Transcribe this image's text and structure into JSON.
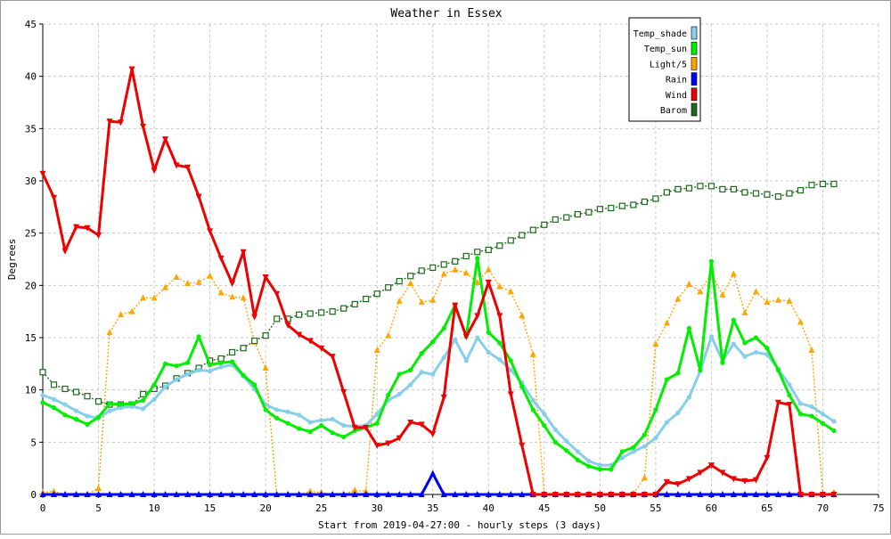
{
  "chart_data": {
    "type": "line",
    "title": "Weather in Essex",
    "xlabel": "Start from 2019-04-27:00 - hourly steps (3 days)",
    "ylabel": "Degrees",
    "xlim": [
      0,
      75
    ],
    "ylim": [
      0,
      45
    ],
    "x_ticks": [
      0,
      5,
      10,
      15,
      20,
      25,
      30,
      35,
      40,
      45,
      50,
      55,
      60,
      65,
      70,
      75
    ],
    "y_ticks": [
      0,
      5,
      10,
      15,
      20,
      25,
      30,
      35,
      40,
      45
    ],
    "grid": true,
    "legend_position": "top-right",
    "x": [
      0,
      1,
      2,
      3,
      4,
      5,
      6,
      7,
      8,
      9,
      10,
      11,
      12,
      13,
      14,
      15,
      16,
      17,
      18,
      19,
      20,
      21,
      22,
      23,
      24,
      25,
      26,
      27,
      28,
      29,
      30,
      31,
      32,
      33,
      34,
      35,
      36,
      37,
      38,
      39,
      40,
      41,
      42,
      43,
      44,
      45,
      46,
      47,
      48,
      49,
      50,
      51,
      52,
      53,
      54,
      55,
      56,
      57,
      58,
      59,
      60,
      61,
      62,
      63,
      64,
      65,
      66,
      67,
      68,
      69,
      70,
      71
    ],
    "series": [
      {
        "name": "Light/5",
        "color": "#ffa500",
        "marker": "triangle-up",
        "style": "dotted",
        "values": [
          0.2,
          0.3,
          0,
          0,
          0,
          0.6,
          15.5,
          17.2,
          17.5,
          18.8,
          18.8,
          19.8,
          20.8,
          20.2,
          20.3,
          20.9,
          19.3,
          18.9,
          18.8,
          14.6,
          12.1,
          0,
          0,
          0,
          0.3,
          0.2,
          0,
          0,
          0.4,
          0.3,
          13.8,
          15.2,
          18.5,
          20.2,
          18.4,
          18.6,
          21.1,
          21.5,
          21.2,
          20.3,
          21.5,
          19.9,
          19.4,
          17.1,
          13.4,
          0,
          0,
          0,
          0,
          0,
          0,
          0,
          0,
          0.1,
          1.6,
          14.4,
          16.4,
          18.7,
          20.1,
          19.4,
          21.1,
          19.1,
          21.1,
          17.4,
          19.4,
          18.4,
          18.6,
          18.5,
          16.5,
          13.8,
          0,
          0.2
        ]
      },
      {
        "name": "Barom",
        "color": "#1a6b1a",
        "marker": "square-open",
        "style": "dotted",
        "values": [
          11.7,
          10.5,
          10.1,
          9.8,
          9.4,
          8.9,
          8.6,
          8.6,
          8.6,
          9.6,
          10.1,
          10.4,
          11.1,
          11.6,
          12.1,
          12.8,
          13.0,
          13.6,
          14.0,
          14.7,
          15.2,
          16.8,
          16.8,
          17.2,
          17.3,
          17.4,
          17.5,
          17.8,
          18.2,
          18.7,
          19.2,
          19.8,
          20.4,
          20.9,
          21.4,
          21.7,
          22.0,
          22.3,
          22.8,
          23.2,
          23.4,
          23.8,
          24.3,
          24.8,
          25.3,
          25.8,
          26.3,
          26.5,
          26.8,
          27.0,
          27.3,
          27.4,
          27.6,
          27.7,
          28.0,
          28.3,
          28.9,
          29.2,
          29.3,
          29.5,
          29.5,
          29.2,
          29.2,
          28.9,
          28.8,
          28.7,
          28.5,
          28.8,
          29.1,
          29.6,
          29.7,
          29.7
        ]
      },
      {
        "name": "Temp_shade",
        "color": "#87ceeb",
        "marker": "dot",
        "style": "solid",
        "values": [
          9.5,
          9.1,
          8.6,
          8.0,
          7.5,
          7.3,
          8.0,
          8.3,
          8.4,
          8.2,
          9.1,
          10.3,
          11.0,
          11.5,
          11.9,
          11.8,
          12.2,
          12.4,
          11.3,
          10.1,
          8.6,
          8.1,
          7.9,
          7.6,
          6.9,
          7.1,
          7.2,
          6.6,
          6.5,
          6.6,
          7.7,
          9.0,
          9.6,
          10.5,
          11.7,
          11.5,
          13.1,
          14.8,
          12.8,
          15.0,
          13.6,
          12.9,
          11.9,
          10.7,
          9.0,
          7.7,
          6.2,
          5.1,
          4.1,
          3.2,
          2.8,
          2.8,
          3.5,
          4.1,
          4.6,
          5.4,
          6.9,
          7.8,
          9.3,
          11.8,
          15.1,
          12.8,
          14.4,
          13.2,
          13.6,
          13.4,
          12.0,
          10.5,
          8.7,
          8.4,
          7.7,
          7.0
        ]
      },
      {
        "name": "Temp_sun",
        "color": "#00ee00",
        "marker": "dot",
        "style": "solid",
        "values": [
          8.8,
          8.3,
          7.6,
          7.2,
          6.7,
          7.4,
          8.7,
          8.6,
          8.7,
          9.0,
          10.5,
          12.5,
          12.3,
          12.6,
          15.1,
          12.4,
          12.6,
          12.7,
          11.4,
          10.5,
          8.1,
          7.3,
          6.8,
          6.3,
          6.0,
          6.6,
          5.9,
          5.5,
          6.1,
          6.4,
          6.8,
          9.5,
          11.5,
          11.9,
          13.5,
          14.6,
          15.9,
          18.1,
          15.1,
          22.6,
          15.5,
          14.5,
          12.8,
          10.3,
          8.1,
          6.6,
          5.0,
          4.2,
          3.3,
          2.7,
          2.4,
          2.4,
          4.1,
          4.5,
          5.7,
          8.1,
          11.0,
          11.6,
          15.9,
          11.9,
          22.3,
          12.6,
          16.7,
          14.5,
          15.0,
          14.0,
          11.9,
          9.5,
          7.7,
          7.5,
          6.8,
          6.1
        ]
      },
      {
        "name": "Rain",
        "color": "#0000ff",
        "marker": "triangle-up",
        "style": "solid",
        "values": [
          0,
          0,
          0,
          0,
          0,
          0,
          0,
          0,
          0,
          0,
          0,
          0,
          0,
          0,
          0,
          0,
          0,
          0,
          0,
          0,
          0,
          0,
          0,
          0,
          0,
          0,
          0,
          0,
          0,
          0,
          0,
          0,
          0,
          0,
          0,
          2.0,
          0,
          0,
          0,
          0,
          0,
          0,
          0,
          0,
          0,
          0,
          0,
          0,
          0,
          0,
          0,
          0,
          0,
          0,
          0,
          0,
          0,
          0,
          0,
          0,
          0,
          0,
          0,
          0,
          0,
          0,
          0,
          0,
          0,
          0,
          0,
          0
        ]
      },
      {
        "name": "Wind",
        "color": "#ee0000",
        "marker": "triangle-down",
        "style": "solid",
        "values": [
          30.7,
          28.4,
          23.3,
          25.6,
          25.5,
          24.8,
          35.7,
          35.6,
          40.7,
          35.2,
          31.0,
          34.0,
          31.5,
          31.3,
          28.5,
          25.2,
          22.6,
          20.2,
          23.2,
          17.0,
          20.8,
          19.2,
          16.2,
          15.3,
          14.7,
          14.0,
          13.2,
          9.8,
          6.4,
          6.4,
          4.7,
          4.9,
          5.4,
          6.9,
          6.7,
          5.8,
          9.3,
          18.1,
          15.1,
          17.1,
          20.3,
          17.1,
          9.6,
          4.7,
          0,
          0,
          0,
          0,
          0,
          0,
          0,
          0,
          0,
          0,
          0,
          0,
          1.2,
          1.0,
          1.5,
          2.1,
          2.8,
          2.1,
          1.5,
          1.3,
          1.4,
          3.5,
          8.8,
          8.6,
          0,
          0,
          0,
          0
        ]
      }
    ],
    "legend_order": [
      "Temp_shade",
      "Temp_sun",
      "Light/5",
      "Rain",
      "Wind",
      "Barom"
    ]
  }
}
